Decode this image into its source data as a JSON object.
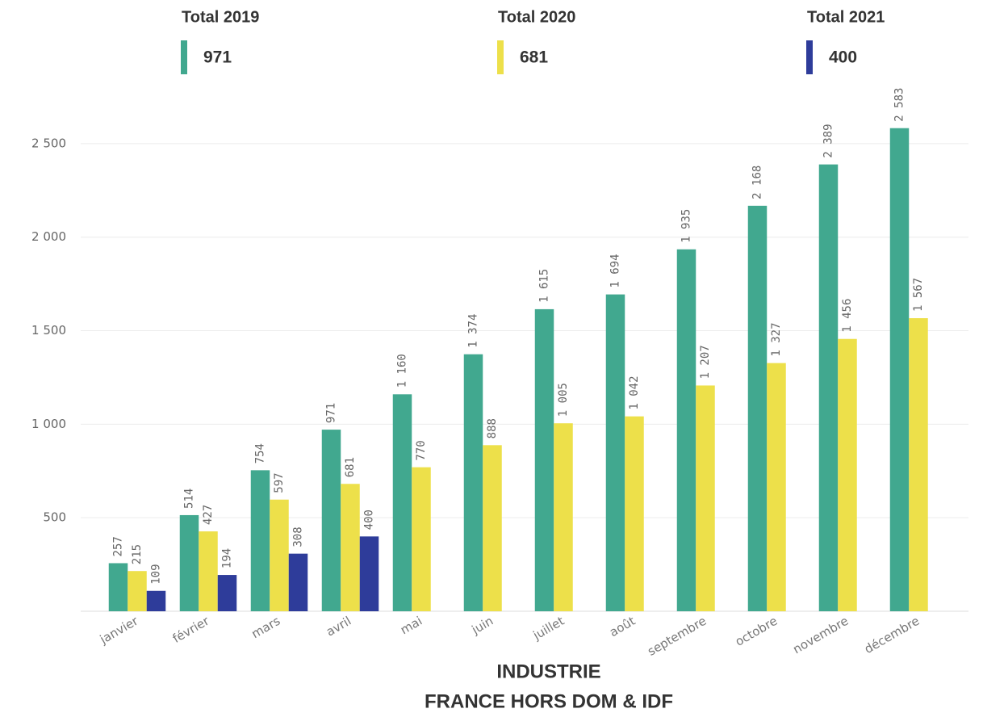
{
  "chart_data": {
    "type": "bar",
    "title": "INDUSTRIE",
    "subtitle": "FRANCE HORS DOM & IDF",
    "categories": [
      "janvier",
      "février",
      "mars",
      "avril",
      "mai",
      "juin",
      "juillet",
      "août",
      "septembre",
      "octobre",
      "novembre",
      "décembre"
    ],
    "series": [
      {
        "name": "Total 2019",
        "total": 971,
        "color": "#41a88f",
        "values": [
          257,
          514,
          754,
          971,
          1160,
          1374,
          1615,
          1694,
          1935,
          2168,
          2389,
          2583
        ],
        "value_labels": [
          "257",
          "514",
          "754",
          "971",
          "1 160",
          "1 374",
          "1 615",
          "1 694",
          "1 935",
          "2 168",
          "2 389",
          "2 583"
        ]
      },
      {
        "name": "Total 2020",
        "total": 681,
        "color": "#ede04a",
        "values": [
          215,
          427,
          597,
          681,
          770,
          888,
          1005,
          1042,
          1207,
          1327,
          1456,
          1567
        ],
        "value_labels": [
          "215",
          "427",
          "597",
          "681",
          "770",
          "888",
          "1 005",
          "1 042",
          "1 207",
          "1 327",
          "1 456",
          "1 567"
        ]
      },
      {
        "name": "Total 2021",
        "total": 400,
        "color": "#2e3c9a",
        "values": [
          109,
          194,
          308,
          400,
          null,
          null,
          null,
          null,
          null,
          null,
          null,
          null
        ],
        "value_labels": [
          "109",
          "194",
          "308",
          "400",
          null,
          null,
          null,
          null,
          null,
          null,
          null,
          null
        ]
      }
    ],
    "ylim": [
      0,
      2700
    ],
    "yticks": [
      500,
      {
        "value": 1000,
        "label": "1 000"
      },
      {
        "value": 1500,
        "label": "1 500"
      },
      {
        "value": 2000,
        "label": "2 000"
      },
      {
        "value": 2500,
        "label": "2 500"
      }
    ],
    "grid": true
  }
}
